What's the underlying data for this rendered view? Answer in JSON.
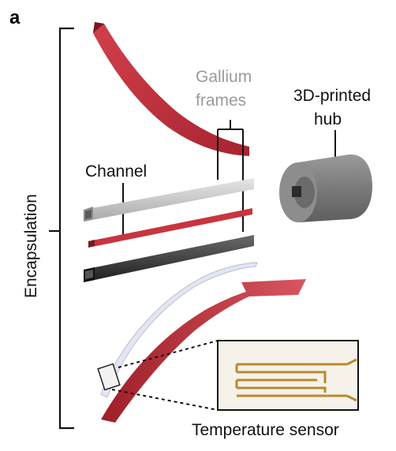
{
  "panel_letter": "a",
  "labels": {
    "encapsulation": "Encapsulation",
    "gallium_frames": [
      "Gallium",
      "frames"
    ],
    "printed_hub": [
      "3D-printed",
      "hub"
    ],
    "channel": "Channel",
    "temperature_sensor": "Temperature sensor"
  },
  "colors": {
    "red": "#c0313b",
    "dark_red": "#8e1d26",
    "gray_frame": "#c9c9c9",
    "dark_frame": "#3a3a3a",
    "hub": "#7d7d7d",
    "gold": "#b8892e",
    "gray_text": "#9a9a9a"
  }
}
